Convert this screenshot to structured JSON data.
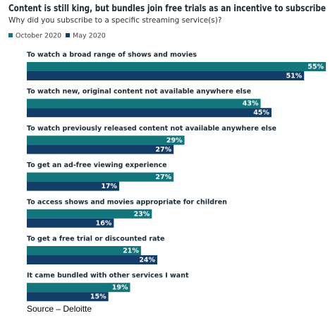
{
  "chart_data": {
    "type": "bar",
    "orientation": "horizontal",
    "title": "Content is still king, but bundles join free trials as an incentive to subscribe",
    "subtitle": "Why did you subscribe to a specific streaming service(s)?",
    "categories": [
      "To watch a broad range of shows and movies",
      "To watch new, original content not available anywhere else",
      "To watch previously released content not available anywhere else",
      "To get an ad-free viewing experience",
      "To access shows and movies appropriate for children",
      "To get a free trial or discounted rate",
      "It came bundled with other services I want"
    ],
    "series": [
      {
        "name": "October 2020",
        "color": "#12777d",
        "values": [
          55,
          43,
          29,
          27,
          23,
          21,
          19
        ],
        "value_labels": [
          "55%",
          "43%",
          "29%",
          "27%",
          "23%",
          "21%",
          "19%"
        ]
      },
      {
        "name": "May 2020",
        "color": "#123d69",
        "values": [
          51,
          45,
          27,
          17,
          16,
          24,
          15
        ],
        "value_labels": [
          "51%",
          "45%",
          "27%",
          "17%",
          "16%",
          "24%",
          "15%"
        ]
      }
    ],
    "source": "Source – Deloitte"
  }
}
